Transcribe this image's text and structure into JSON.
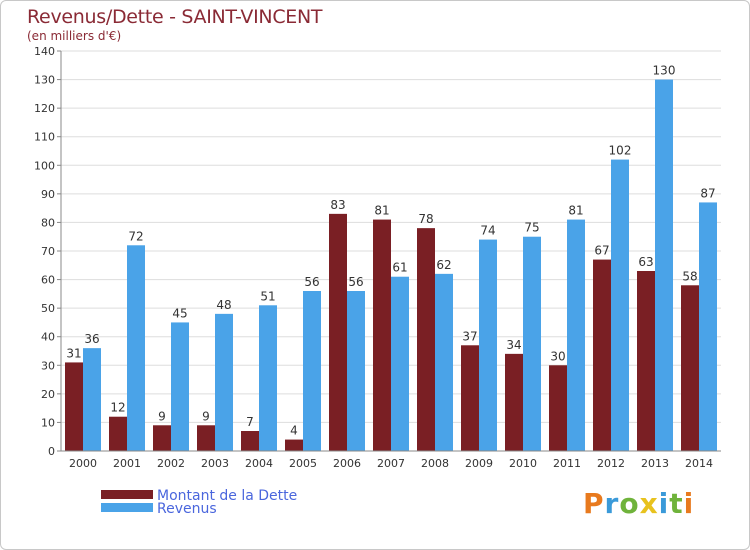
{
  "chart_data": {
    "type": "bar",
    "title": "Revenus/Dette - SAINT-VINCENT",
    "subtitle": "(en milliers d'€)",
    "xlabel": "",
    "ylabel": "",
    "ylim": [
      0,
      140
    ],
    "yticks": [
      0,
      10,
      20,
      30,
      40,
      50,
      60,
      70,
      80,
      90,
      100,
      110,
      120,
      130,
      140
    ],
    "grid": true,
    "legend_position": "bottom-left",
    "categories": [
      "2000",
      "2001",
      "2002",
      "2003",
      "2004",
      "2005",
      "2006",
      "2007",
      "2008",
      "2009",
      "2010",
      "2011",
      "2012",
      "2013",
      "2014"
    ],
    "series": [
      {
        "name": "Montant de la Dette",
        "color": "#7a1f24",
        "values": [
          31,
          12,
          9,
          9,
          7,
          4,
          83,
          81,
          78,
          37,
          34,
          30,
          67,
          63,
          58
        ]
      },
      {
        "name": "Revenus",
        "color": "#4aa3e8",
        "values": [
          36,
          72,
          45,
          48,
          51,
          56,
          56,
          61,
          62,
          74,
          75,
          81,
          102,
          130,
          87
        ]
      }
    ]
  },
  "logo": {
    "letters": [
      "P",
      "r",
      "o",
      "x",
      "i",
      "t",
      "i"
    ],
    "colors": [
      "#e87a1e",
      "#3a9ad9",
      "#6fb33b",
      "#e8c21e",
      "#3a9ad9",
      "#6fb33b",
      "#e87a1e"
    ]
  }
}
